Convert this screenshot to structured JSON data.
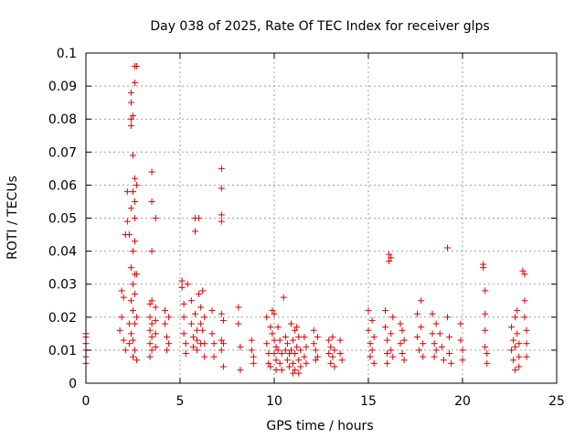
{
  "chart_data": {
    "type": "scatter",
    "title": "Day 038 of 2025, Rate Of TEC Index for receiver glps",
    "xlabel": "GPS time / hours",
    "ylabel": "ROTI / TECUs",
    "xlim": [
      0,
      25
    ],
    "ylim": [
      0,
      0.1
    ],
    "xticks": [
      "0",
      "5",
      "10",
      "15",
      "20",
      "25"
    ],
    "yticks": [
      "0",
      "0.01",
      "0.02",
      "0.03",
      "0.04",
      "0.05",
      "0.06",
      "0.07",
      "0.08",
      "0.09",
      "0.1"
    ],
    "grid": true,
    "marker": "plus",
    "color": "#e00000",
    "series": [
      {
        "name": "",
        "points": [
          [
            0.0,
            0.006
          ],
          [
            0.0,
            0.008
          ],
          [
            0.0,
            0.01
          ],
          [
            0.0,
            0.012
          ],
          [
            0.0,
            0.014
          ],
          [
            0.0,
            0.015
          ],
          [
            1.8,
            0.016
          ],
          [
            1.9,
            0.02
          ],
          [
            1.9,
            0.028
          ],
          [
            2.0,
            0.026
          ],
          [
            2.0,
            0.013
          ],
          [
            2.1,
            0.01
          ],
          [
            2.1,
            0.045
          ],
          [
            2.2,
            0.058
          ],
          [
            2.2,
            0.049
          ],
          [
            2.3,
            0.045
          ],
          [
            2.3,
            0.018
          ],
          [
            2.3,
            0.012
          ],
          [
            2.4,
            0.08
          ],
          [
            2.4,
            0.085
          ],
          [
            2.4,
            0.088
          ],
          [
            2.4,
            0.078
          ],
          [
            2.4,
            0.053
          ],
          [
            2.4,
            0.035
          ],
          [
            2.4,
            0.025
          ],
          [
            2.4,
            0.015
          ],
          [
            2.5,
            0.081
          ],
          [
            2.5,
            0.069
          ],
          [
            2.5,
            0.058
          ],
          [
            2.5,
            0.04
          ],
          [
            2.5,
            0.03
          ],
          [
            2.5,
            0.022
          ],
          [
            2.5,
            0.013
          ],
          [
            2.5,
            0.008
          ],
          [
            2.6,
            0.096
          ],
          [
            2.6,
            0.091
          ],
          [
            2.6,
            0.062
          ],
          [
            2.6,
            0.055
          ],
          [
            2.6,
            0.05
          ],
          [
            2.6,
            0.043
          ],
          [
            2.6,
            0.033
          ],
          [
            2.6,
            0.027
          ],
          [
            2.6,
            0.018
          ],
          [
            2.6,
            0.01
          ],
          [
            2.7,
            0.096
          ],
          [
            2.7,
            0.06
          ],
          [
            2.7,
            0.033
          ],
          [
            2.7,
            0.02
          ],
          [
            2.7,
            0.007
          ],
          [
            3.4,
            0.024
          ],
          [
            3.4,
            0.02
          ],
          [
            3.4,
            0.016
          ],
          [
            3.4,
            0.012
          ],
          [
            3.4,
            0.008
          ],
          [
            3.5,
            0.064
          ],
          [
            3.5,
            0.055
          ],
          [
            3.5,
            0.04
          ],
          [
            3.5,
            0.025
          ],
          [
            3.5,
            0.018
          ],
          [
            3.5,
            0.014
          ],
          [
            3.5,
            0.01
          ],
          [
            3.7,
            0.05
          ],
          [
            3.7,
            0.023
          ],
          [
            3.7,
            0.019
          ],
          [
            3.7,
            0.015
          ],
          [
            3.7,
            0.011
          ],
          [
            4.2,
            0.022
          ],
          [
            4.2,
            0.018
          ],
          [
            4.3,
            0.014
          ],
          [
            4.3,
            0.01
          ],
          [
            4.4,
            0.02
          ],
          [
            4.4,
            0.012
          ],
          [
            5.1,
            0.031
          ],
          [
            5.1,
            0.029
          ],
          [
            5.2,
            0.024
          ],
          [
            5.2,
            0.02
          ],
          [
            5.2,
            0.015
          ],
          [
            5.3,
            0.012
          ],
          [
            5.3,
            0.009
          ],
          [
            5.4,
            0.03
          ],
          [
            5.6,
            0.025
          ],
          [
            5.6,
            0.018
          ],
          [
            5.7,
            0.014
          ],
          [
            5.7,
            0.011
          ],
          [
            5.8,
            0.05
          ],
          [
            5.8,
            0.046
          ],
          [
            5.8,
            0.021
          ],
          [
            5.9,
            0.016
          ],
          [
            5.9,
            0.013
          ],
          [
            5.9,
            0.01
          ],
          [
            6.0,
            0.05
          ],
          [
            6.0,
            0.027
          ],
          [
            6.1,
            0.023
          ],
          [
            6.1,
            0.018
          ],
          [
            6.1,
            0.012
          ],
          [
            6.2,
            0.028
          ],
          [
            6.2,
            0.016
          ],
          [
            6.3,
            0.02
          ],
          [
            6.3,
            0.012
          ],
          [
            6.3,
            0.008
          ],
          [
            6.7,
            0.022
          ],
          [
            6.7,
            0.015
          ],
          [
            6.8,
            0.012
          ],
          [
            6.8,
            0.008
          ],
          [
            7.2,
            0.065
          ],
          [
            7.2,
            0.059
          ],
          [
            7.2,
            0.051
          ],
          [
            7.2,
            0.049
          ],
          [
            7.2,
            0.021
          ],
          [
            7.2,
            0.013
          ],
          [
            7.2,
            0.01
          ],
          [
            7.3,
            0.019
          ],
          [
            7.3,
            0.012
          ],
          [
            7.3,
            0.005
          ],
          [
            8.1,
            0.023
          ],
          [
            8.1,
            0.018
          ],
          [
            8.2,
            0.011
          ],
          [
            8.2,
            0.004
          ],
          [
            8.8,
            0.013
          ],
          [
            8.8,
            0.01
          ],
          [
            8.9,
            0.008
          ],
          [
            8.9,
            0.006
          ],
          [
            9.6,
            0.02
          ],
          [
            9.6,
            0.012
          ],
          [
            9.7,
            0.009
          ],
          [
            9.7,
            0.006
          ],
          [
            9.8,
            0.017
          ],
          [
            9.8,
            0.005
          ],
          [
            9.9,
            0.022
          ],
          [
            9.9,
            0.015
          ],
          [
            10.0,
            0.021
          ],
          [
            10.0,
            0.013
          ],
          [
            10.0,
            0.009
          ],
          [
            10.1,
            0.011
          ],
          [
            10.1,
            0.007
          ],
          [
            10.1,
            0.004
          ],
          [
            10.2,
            0.017
          ],
          [
            10.2,
            0.01
          ],
          [
            10.3,
            0.013
          ],
          [
            10.3,
            0.006
          ],
          [
            10.4,
            0.009
          ],
          [
            10.4,
            0.004
          ],
          [
            10.5,
            0.026
          ],
          [
            10.6,
            0.014
          ],
          [
            10.6,
            0.01
          ],
          [
            10.7,
            0.012
          ],
          [
            10.7,
            0.007
          ],
          [
            10.8,
            0.009
          ],
          [
            10.8,
            0.005
          ],
          [
            10.9,
            0.018
          ],
          [
            10.9,
            0.01
          ],
          [
            11.0,
            0.013
          ],
          [
            11.0,
            0.006
          ],
          [
            11.0,
            0.003
          ],
          [
            11.1,
            0.016
          ],
          [
            11.1,
            0.009
          ],
          [
            11.1,
            0.004
          ],
          [
            11.2,
            0.017
          ],
          [
            11.2,
            0.011
          ],
          [
            11.3,
            0.014
          ],
          [
            11.3,
            0.007
          ],
          [
            11.3,
            0.003
          ],
          [
            11.4,
            0.01
          ],
          [
            11.4,
            0.005
          ],
          [
            11.6,
            0.014
          ],
          [
            11.6,
            0.008
          ],
          [
            11.7,
            0.011
          ],
          [
            11.7,
            0.006
          ],
          [
            12.1,
            0.016
          ],
          [
            12.1,
            0.012
          ],
          [
            12.2,
            0.01
          ],
          [
            12.2,
            0.007
          ],
          [
            12.3,
            0.014
          ],
          [
            12.3,
            0.008
          ],
          [
            12.9,
            0.013
          ],
          [
            12.9,
            0.009
          ],
          [
            13.0,
            0.011
          ],
          [
            13.0,
            0.006
          ],
          [
            13.1,
            0.014
          ],
          [
            13.1,
            0.008
          ],
          [
            13.2,
            0.01
          ],
          [
            13.2,
            0.005
          ],
          [
            13.5,
            0.013
          ],
          [
            13.5,
            0.009
          ],
          [
            13.6,
            0.007
          ],
          [
            15.0,
            0.022
          ],
          [
            15.0,
            0.016
          ],
          [
            15.1,
            0.012
          ],
          [
            15.1,
            0.008
          ],
          [
            15.2,
            0.019
          ],
          [
            15.2,
            0.01
          ],
          [
            15.3,
            0.014
          ],
          [
            15.3,
            0.006
          ],
          [
            15.9,
            0.022
          ],
          [
            15.9,
            0.017
          ],
          [
            16.0,
            0.013
          ],
          [
            16.0,
            0.009
          ],
          [
            16.0,
            0.006
          ],
          [
            16.1,
            0.039
          ],
          [
            16.1,
            0.037
          ],
          [
            16.2,
            0.038
          ],
          [
            16.2,
            0.015
          ],
          [
            16.2,
            0.01
          ],
          [
            16.3,
            0.02
          ],
          [
            16.3,
            0.008
          ],
          [
            16.7,
            0.018
          ],
          [
            16.7,
            0.012
          ],
          [
            16.8,
            0.016
          ],
          [
            16.8,
            0.009
          ],
          [
            16.9,
            0.013
          ],
          [
            16.9,
            0.007
          ],
          [
            17.6,
            0.021
          ],
          [
            17.6,
            0.014
          ],
          [
            17.7,
            0.01
          ],
          [
            17.8,
            0.025
          ],
          [
            17.8,
            0.017
          ],
          [
            17.9,
            0.012
          ],
          [
            17.9,
            0.008
          ],
          [
            18.4,
            0.021
          ],
          [
            18.4,
            0.015
          ],
          [
            18.5,
            0.012
          ],
          [
            18.5,
            0.008
          ],
          [
            18.6,
            0.018
          ],
          [
            18.6,
            0.01
          ],
          [
            18.8,
            0.015
          ],
          [
            18.9,
            0.011
          ],
          [
            19.0,
            0.007
          ],
          [
            19.2,
            0.041
          ],
          [
            19.2,
            0.02
          ],
          [
            19.3,
            0.014
          ],
          [
            19.3,
            0.009
          ],
          [
            19.4,
            0.006
          ],
          [
            19.9,
            0.018
          ],
          [
            19.9,
            0.013
          ],
          [
            20.0,
            0.01
          ],
          [
            20.0,
            0.007
          ],
          [
            21.1,
            0.036
          ],
          [
            21.1,
            0.035
          ],
          [
            21.2,
            0.028
          ],
          [
            21.2,
            0.021
          ],
          [
            21.2,
            0.016
          ],
          [
            21.2,
            0.011
          ],
          [
            21.3,
            0.009
          ],
          [
            21.3,
            0.006
          ],
          [
            22.6,
            0.017
          ],
          [
            22.6,
            0.01
          ],
          [
            22.7,
            0.013
          ],
          [
            22.7,
            0.007
          ],
          [
            22.8,
            0.02
          ],
          [
            22.8,
            0.011
          ],
          [
            22.8,
            0.004
          ],
          [
            22.9,
            0.022
          ],
          [
            22.9,
            0.015
          ],
          [
            23.0,
            0.012
          ],
          [
            23.0,
            0.008
          ],
          [
            23.0,
            0.005
          ],
          [
            23.2,
            0.034
          ],
          [
            23.3,
            0.033
          ],
          [
            23.3,
            0.025
          ],
          [
            23.3,
            0.02
          ],
          [
            23.4,
            0.016
          ],
          [
            23.4,
            0.012
          ],
          [
            23.4,
            0.008
          ]
        ]
      }
    ]
  }
}
